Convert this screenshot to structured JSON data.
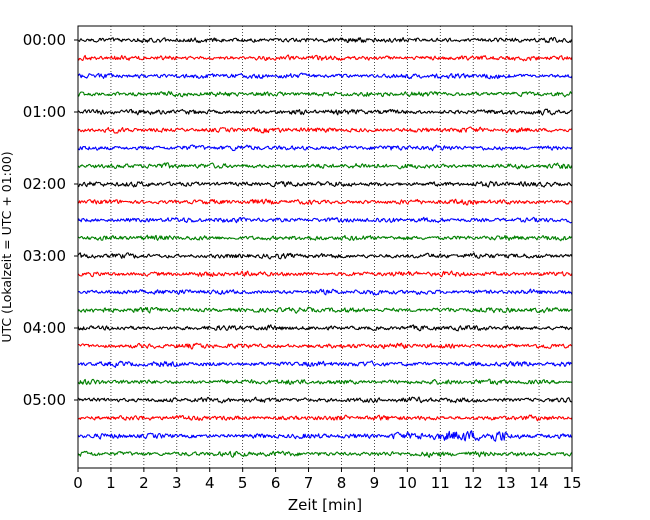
{
  "chart_data": {
    "type": "line",
    "title": "",
    "xlabel": "Zeit  [min]",
    "ylabel": "UTC (Lokalzeit = UTC + 01:00)",
    "xlim": [
      0,
      15
    ],
    "x_ticks": [
      "0",
      "1",
      "2",
      "3",
      "4",
      "5",
      "6",
      "7",
      "8",
      "9",
      "10",
      "11",
      "12",
      "13",
      "14",
      "15"
    ],
    "y_ticks": [
      {
        "label": "00:00",
        "trace": 0
      },
      {
        "label": "01:00",
        "trace": 4
      },
      {
        "label": "02:00",
        "trace": 8
      },
      {
        "label": "03:00",
        "trace": 12
      },
      {
        "label": "04:00",
        "trace": 16
      },
      {
        "label": "05:00",
        "trace": 20
      }
    ],
    "grid": {
      "vertical": true,
      "style": "dotted"
    },
    "trace_colors": [
      "#000000",
      "#ff0000",
      "#0000ff",
      "#008000"
    ],
    "trace_count": 24,
    "trace_interval_minutes": 15,
    "burst": {
      "trace": 22,
      "x_start": 9.5,
      "x_end": 13.0,
      "amplitude_factor": 2.2
    }
  }
}
